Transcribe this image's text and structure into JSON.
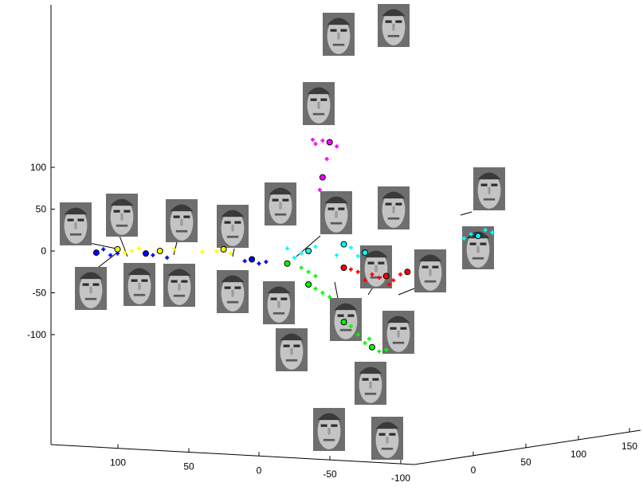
{
  "chart_data": {
    "type": "scatter",
    "title": "",
    "xlabel": "",
    "ylabel": "",
    "zlabel": "",
    "grid": false,
    "legend": "none",
    "y_ticks": [
      "100",
      "50",
      "0",
      "-50",
      "-100"
    ],
    "x_ticks": [
      "100",
      "50",
      "0",
      "-50",
      "-100"
    ],
    "z_ticks": [
      "0",
      "50",
      "100",
      "150"
    ],
    "series": [
      {
        "color": "#ff00ff",
        "points": [
          [
            -50,
            130
          ],
          [
            -45,
            132
          ],
          [
            -40,
            128
          ],
          [
            -48,
            110
          ],
          [
            -45,
            88
          ],
          [
            -43,
            73
          ],
          [
            -55,
            125
          ],
          [
            -38,
            133
          ]
        ]
      },
      {
        "color": "#00ffff",
        "points": [
          [
            -35,
            0
          ],
          [
            -40,
            5
          ],
          [
            -30,
            -3
          ],
          [
            -25,
            -8
          ],
          [
            -60,
            8
          ],
          [
            -65,
            4
          ],
          [
            -70,
            -6
          ],
          [
            -20,
            3
          ],
          [
            -75,
            -2
          ],
          [
            -55,
            -5
          ],
          [
            -150,
            20
          ],
          [
            -160,
            25
          ],
          [
            -155,
            18
          ],
          [
            -165,
            22
          ],
          [
            -145,
            15
          ]
        ]
      },
      {
        "color": "#00ff00",
        "points": [
          [
            -20,
            -15
          ],
          [
            -30,
            -20
          ],
          [
            -35,
            -25
          ],
          [
            -40,
            -30
          ],
          [
            -35,
            -40
          ],
          [
            -40,
            -45
          ],
          [
            -45,
            -50
          ],
          [
            -50,
            -55
          ],
          [
            -60,
            -85
          ],
          [
            -65,
            -90
          ],
          [
            -70,
            -100
          ],
          [
            -75,
            -110
          ],
          [
            -80,
            -115
          ],
          [
            -85,
            -120
          ],
          [
            -90,
            -118
          ],
          [
            -78,
            -105
          ]
        ]
      },
      {
        "color": "#ff0000",
        "points": [
          [
            -60,
            -20
          ],
          [
            -65,
            -22
          ],
          [
            -70,
            -25
          ],
          [
            -80,
            -28
          ],
          [
            -90,
            -30
          ],
          [
            -95,
            -35
          ],
          [
            -100,
            -28
          ],
          [
            -85,
            -32
          ],
          [
            -105,
            -25
          ],
          [
            -75,
            -35
          ],
          [
            -92,
            -40
          ]
        ]
      },
      {
        "color": "#ffff00",
        "points": [
          [
            100,
            2
          ],
          [
            95,
            -2
          ],
          [
            90,
            0
          ],
          [
            85,
            3
          ],
          [
            70,
            0
          ],
          [
            60,
            2
          ],
          [
            30,
            0
          ],
          [
            20,
            -3
          ],
          [
            25,
            2
          ],
          [
            40,
            -1
          ]
        ]
      },
      {
        "color": "#0000ff",
        "points": [
          [
            115,
            -2
          ],
          [
            110,
            2
          ],
          [
            105,
            -5
          ],
          [
            100,
            -3
          ],
          [
            80,
            -3
          ],
          [
            75,
            -5
          ],
          [
            65,
            -8
          ],
          [
            10,
            -12
          ],
          [
            5,
            -10
          ],
          [
            0,
            -15
          ],
          [
            -5,
            -13
          ]
        ]
      }
    ]
  }
}
